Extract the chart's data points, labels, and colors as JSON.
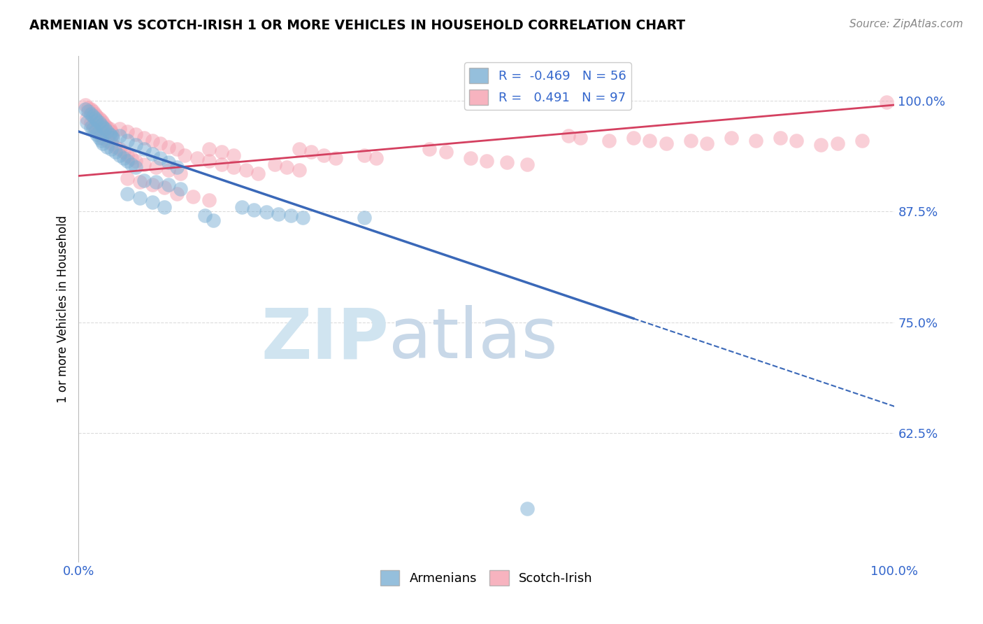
{
  "title": "ARMENIAN VS SCOTCH-IRISH 1 OR MORE VEHICLES IN HOUSEHOLD CORRELATION CHART",
  "source_text": "Source: ZipAtlas.com",
  "ylabel": "1 or more Vehicles in Household",
  "xlim": [
    0.0,
    1.0
  ],
  "ylim": [
    0.48,
    1.05
  ],
  "yticks": [
    0.625,
    0.75,
    0.875,
    1.0
  ],
  "ytick_labels": [
    "62.5%",
    "75.0%",
    "87.5%",
    "100.0%"
  ],
  "xticks": [
    0.0,
    1.0
  ],
  "xtick_labels": [
    "0.0%",
    "100.0%"
  ],
  "blue_color": "#7bafd4",
  "pink_color": "#f5a0b0",
  "blue_line_color": "#3a68b8",
  "pink_line_color": "#d44060",
  "blue_line_solid_end": 0.68,
  "blue_line_x0": 0.0,
  "blue_line_y0": 0.965,
  "blue_line_x1": 1.0,
  "blue_line_y1": 0.655,
  "pink_line_x0": 0.0,
  "pink_line_y0": 0.915,
  "pink_line_x1": 1.0,
  "pink_line_y1": 0.995,
  "background_color": "#ffffff",
  "grid_color": "#cccccc",
  "watermark_zip": "ZIP",
  "watermark_atlas": "atlas",
  "blue_points": [
    [
      0.008,
      0.99
    ],
    [
      0.012,
      0.988
    ],
    [
      0.015,
      0.985
    ],
    [
      0.018,
      0.982
    ],
    [
      0.02,
      0.98
    ],
    [
      0.022,
      0.978
    ],
    [
      0.025,
      0.975
    ],
    [
      0.028,
      0.972
    ],
    [
      0.03,
      0.97
    ],
    [
      0.032,
      0.968
    ],
    [
      0.035,
      0.965
    ],
    [
      0.038,
      0.962
    ],
    [
      0.04,
      0.96
    ],
    [
      0.042,
      0.958
    ],
    [
      0.01,
      0.975
    ],
    [
      0.015,
      0.97
    ],
    [
      0.018,
      0.968
    ],
    [
      0.02,
      0.965
    ],
    [
      0.022,
      0.962
    ],
    [
      0.025,
      0.958
    ],
    [
      0.028,
      0.955
    ],
    [
      0.03,
      0.952
    ],
    [
      0.035,
      0.948
    ],
    [
      0.04,
      0.945
    ],
    [
      0.045,
      0.942
    ],
    [
      0.05,
      0.938
    ],
    [
      0.055,
      0.935
    ],
    [
      0.06,
      0.932
    ],
    [
      0.065,
      0.928
    ],
    [
      0.07,
      0.925
    ],
    [
      0.05,
      0.96
    ],
    [
      0.06,
      0.955
    ],
    [
      0.07,
      0.95
    ],
    [
      0.08,
      0.945
    ],
    [
      0.09,
      0.94
    ],
    [
      0.1,
      0.935
    ],
    [
      0.11,
      0.93
    ],
    [
      0.12,
      0.925
    ],
    [
      0.08,
      0.91
    ],
    [
      0.095,
      0.908
    ],
    [
      0.11,
      0.905
    ],
    [
      0.125,
      0.9
    ],
    [
      0.06,
      0.895
    ],
    [
      0.075,
      0.89
    ],
    [
      0.09,
      0.885
    ],
    [
      0.105,
      0.88
    ],
    [
      0.2,
      0.88
    ],
    [
      0.215,
      0.877
    ],
    [
      0.23,
      0.874
    ],
    [
      0.245,
      0.872
    ],
    [
      0.26,
      0.87
    ],
    [
      0.275,
      0.868
    ],
    [
      0.35,
      0.868
    ],
    [
      0.155,
      0.87
    ],
    [
      0.165,
      0.865
    ],
    [
      0.55,
      0.54
    ]
  ],
  "pink_points": [
    [
      0.008,
      0.995
    ],
    [
      0.012,
      0.992
    ],
    [
      0.015,
      0.99
    ],
    [
      0.018,
      0.988
    ],
    [
      0.02,
      0.985
    ],
    [
      0.022,
      0.982
    ],
    [
      0.025,
      0.98
    ],
    [
      0.028,
      0.978
    ],
    [
      0.03,
      0.975
    ],
    [
      0.032,
      0.972
    ],
    [
      0.035,
      0.97
    ],
    [
      0.038,
      0.968
    ],
    [
      0.04,
      0.965
    ],
    [
      0.042,
      0.962
    ],
    [
      0.01,
      0.98
    ],
    [
      0.015,
      0.975
    ],
    [
      0.018,
      0.972
    ],
    [
      0.02,
      0.97
    ],
    [
      0.022,
      0.968
    ],
    [
      0.025,
      0.965
    ],
    [
      0.028,
      0.962
    ],
    [
      0.03,
      0.958
    ],
    [
      0.035,
      0.955
    ],
    [
      0.04,
      0.952
    ],
    [
      0.045,
      0.948
    ],
    [
      0.05,
      0.945
    ],
    [
      0.055,
      0.942
    ],
    [
      0.06,
      0.938
    ],
    [
      0.065,
      0.935
    ],
    [
      0.07,
      0.932
    ],
    [
      0.05,
      0.968
    ],
    [
      0.06,
      0.965
    ],
    [
      0.07,
      0.962
    ],
    [
      0.08,
      0.958
    ],
    [
      0.09,
      0.955
    ],
    [
      0.1,
      0.952
    ],
    [
      0.11,
      0.948
    ],
    [
      0.12,
      0.945
    ],
    [
      0.08,
      0.928
    ],
    [
      0.095,
      0.925
    ],
    [
      0.11,
      0.922
    ],
    [
      0.125,
      0.918
    ],
    [
      0.06,
      0.912
    ],
    [
      0.075,
      0.908
    ],
    [
      0.09,
      0.905
    ],
    [
      0.105,
      0.902
    ],
    [
      0.13,
      0.938
    ],
    [
      0.145,
      0.935
    ],
    [
      0.16,
      0.932
    ],
    [
      0.175,
      0.928
    ],
    [
      0.19,
      0.925
    ],
    [
      0.205,
      0.922
    ],
    [
      0.22,
      0.918
    ],
    [
      0.16,
      0.945
    ],
    [
      0.175,
      0.942
    ],
    [
      0.19,
      0.938
    ],
    [
      0.27,
      0.945
    ],
    [
      0.285,
      0.942
    ],
    [
      0.3,
      0.938
    ],
    [
      0.315,
      0.935
    ],
    [
      0.24,
      0.928
    ],
    [
      0.255,
      0.925
    ],
    [
      0.27,
      0.922
    ],
    [
      0.35,
      0.938
    ],
    [
      0.365,
      0.935
    ],
    [
      0.12,
      0.895
    ],
    [
      0.14,
      0.892
    ],
    [
      0.16,
      0.888
    ],
    [
      0.6,
      0.96
    ],
    [
      0.615,
      0.958
    ],
    [
      0.65,
      0.955
    ],
    [
      0.68,
      0.958
    ],
    [
      0.7,
      0.955
    ],
    [
      0.72,
      0.952
    ],
    [
      0.75,
      0.955
    ],
    [
      0.77,
      0.952
    ],
    [
      0.8,
      0.958
    ],
    [
      0.83,
      0.955
    ],
    [
      0.86,
      0.958
    ],
    [
      0.88,
      0.955
    ],
    [
      0.91,
      0.95
    ],
    [
      0.93,
      0.952
    ],
    [
      0.96,
      0.955
    ],
    [
      0.99,
      0.998
    ],
    [
      0.43,
      0.945
    ],
    [
      0.45,
      0.942
    ],
    [
      0.48,
      0.935
    ],
    [
      0.5,
      0.932
    ],
    [
      0.525,
      0.93
    ],
    [
      0.55,
      0.928
    ]
  ]
}
